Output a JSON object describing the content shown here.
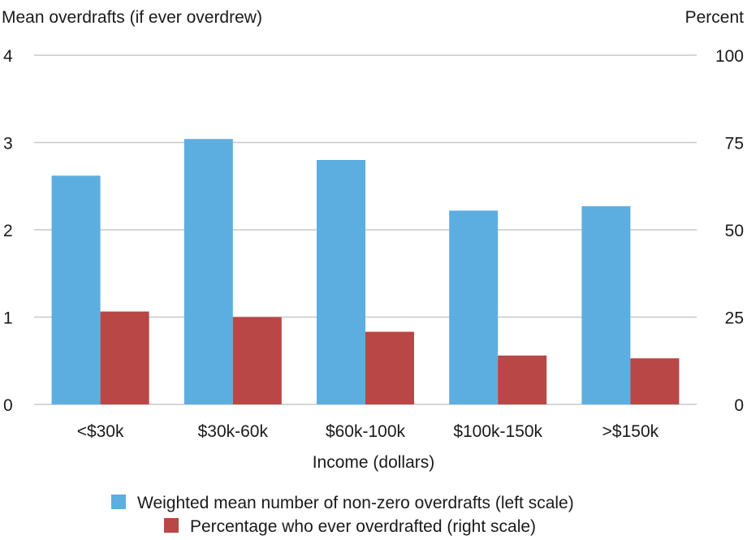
{
  "chart_data": {
    "type": "bar",
    "left_axis_title": "Mean overdrafts (if ever overdrew)",
    "right_axis_title": "Percent",
    "xlabel": "Income (dollars)",
    "categories": [
      "<$30k",
      "$30k-60k",
      "$60k-100k",
      "$100k-150k",
      ">$150k"
    ],
    "left_ticks": [
      "0",
      "1",
      "2",
      "3",
      "4"
    ],
    "right_ticks": [
      "0",
      "25",
      "50",
      "75",
      "100"
    ],
    "ylim_left": [
      0,
      4
    ],
    "ylim_right": [
      0,
      100
    ],
    "series": [
      {
        "name": "Weighted mean number of non-zero overdrafts (left scale)",
        "axis": "left",
        "color": "#5daee0",
        "values": [
          2.62,
          3.04,
          2.8,
          2.22,
          2.27
        ]
      },
      {
        "name": "Percentage who ever overdrafted (right scale)",
        "axis": "right",
        "color": "#b94745",
        "values": [
          26.6,
          25.0,
          20.8,
          14.0,
          13.2
        ]
      }
    ]
  }
}
